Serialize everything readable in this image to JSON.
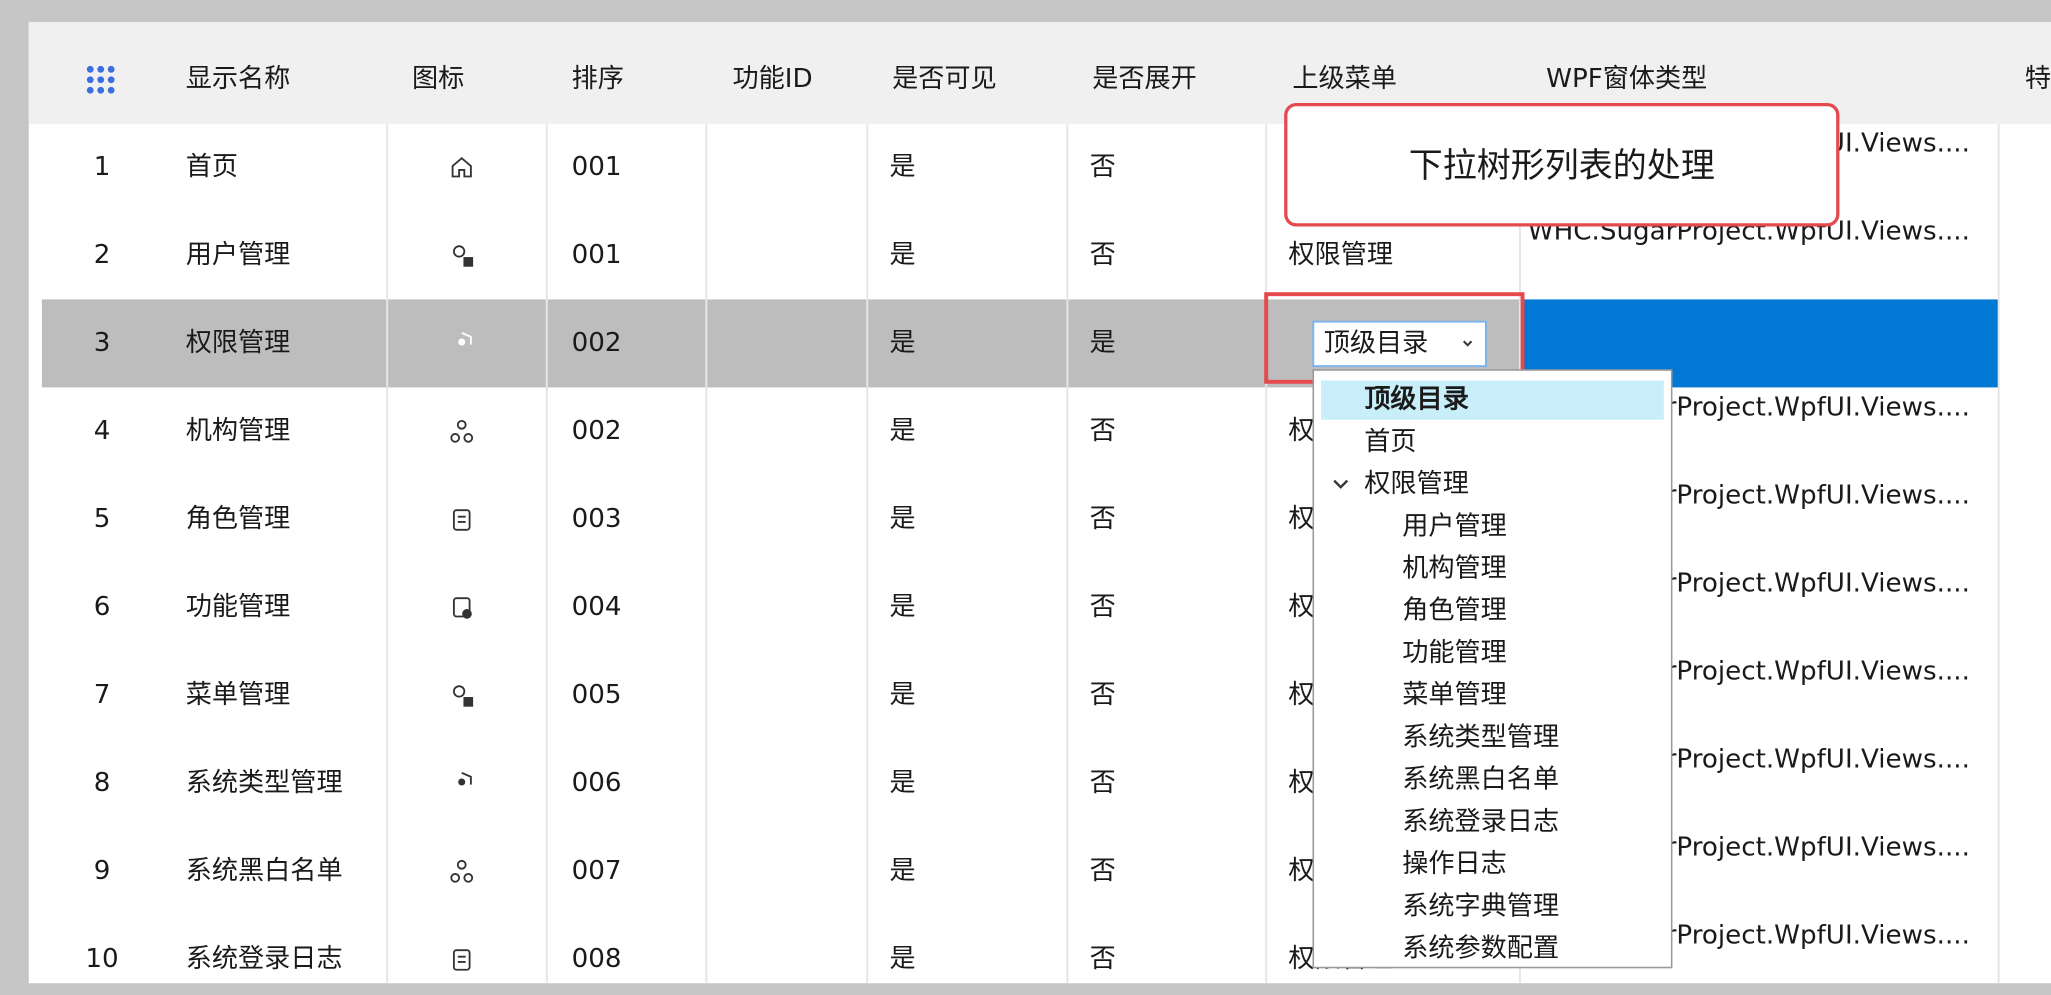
{
  "table": {
    "columns": [
      "显示名称",
      "图标",
      "排序",
      "功能ID",
      "是否可见",
      "是否展开",
      "上级菜单",
      "WPF窗体类型",
      "特"
    ],
    "rows": [
      {
        "no": "1",
        "name": "首页",
        "sort": "001",
        "visible": "是",
        "expand": "否",
        "wpf": "WHC.SugarProject.WpfUI.Views...."
      },
      {
        "no": "2",
        "name": "用户管理",
        "sort": "001",
        "visible": "是",
        "expand": "否",
        "parent": "权限管理",
        "wpf": "WHC.SugarProject.WpfUI.Views...."
      },
      {
        "no": "3",
        "name": "权限管理",
        "sort": "002",
        "visible": "是",
        "expand": "是"
      },
      {
        "no": "4",
        "name": "机构管理",
        "sort": "002",
        "visible": "是",
        "expand": "否",
        "parent": "权限管理",
        "wpf": "WHC.SugarProject.WpfUI.Views...."
      },
      {
        "no": "5",
        "name": "角色管理",
        "sort": "003",
        "visible": "是",
        "expand": "否",
        "parent": "权限管理",
        "wpf": "WHC.SugarProject.WpfUI.Views...."
      },
      {
        "no": "6",
        "name": "功能管理",
        "sort": "004",
        "visible": "是",
        "expand": "否",
        "parent": "权限管理",
        "wpf": "WHC.SugarProject.WpfUI.Views...."
      },
      {
        "no": "7",
        "name": "菜单管理",
        "sort": "005",
        "visible": "是",
        "expand": "否",
        "parent": "权限管理",
        "wpf": "WHC.SugarProject.WpfUI.Views...."
      },
      {
        "no": "8",
        "name": "系统类型管理",
        "sort": "006",
        "visible": "是",
        "expand": "否",
        "parent": "权限管理",
        "wpf": "WHC.SugarProject.WpfUI.Views...."
      },
      {
        "no": "9",
        "name": "系统黑白名单",
        "sort": "007",
        "visible": "是",
        "expand": "否",
        "parent": "权限管理",
        "wpf": "WHC.SugarProject.WpfUI.Views...."
      },
      {
        "no": "10",
        "name": "系统登录日志",
        "sort": "008",
        "visible": "是",
        "expand": "否",
        "parent": "权限管理",
        "wpf": "WHC.SugarProject.WpfUI.Views...."
      }
    ]
  },
  "callout": "下拉树形列表的处理",
  "dropdown": {
    "value": "顶级目录",
    "items": [
      {
        "label": "顶级目录"
      },
      {
        "label": "首页"
      },
      {
        "label": "权限管理",
        "children": [
          {
            "label": "用户管理"
          },
          {
            "label": "机构管理"
          },
          {
            "label": "角色管理"
          },
          {
            "label": "功能管理"
          },
          {
            "label": "菜单管理"
          },
          {
            "label": "系统类型管理"
          },
          {
            "label": "系统黑白名单"
          },
          {
            "label": "系统登录日志"
          },
          {
            "label": "操作日志"
          },
          {
            "label": "系统字典管理"
          },
          {
            "label": "系统参数配置"
          }
        ]
      }
    ]
  }
}
